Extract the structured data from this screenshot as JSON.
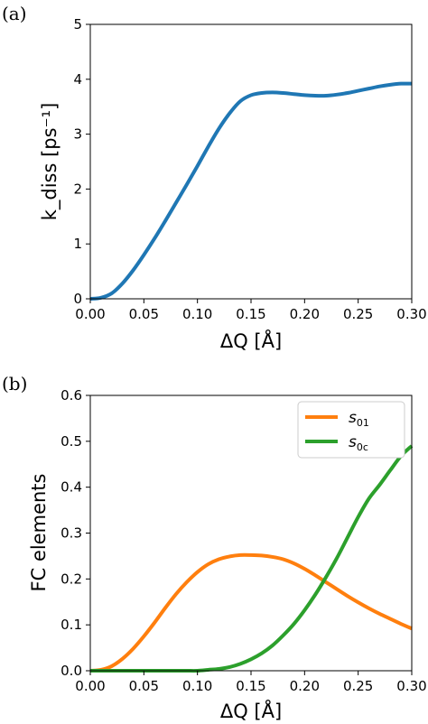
{
  "panels": [
    {
      "panel_label": "(a)",
      "xlabel": "ΔQ [Å]",
      "ylabel": "k_diss [ps⁻¹]",
      "xlim": [
        0.0,
        0.3
      ],
      "ylim": [
        0,
        5
      ],
      "xticks": [
        "0.00",
        "0.05",
        "0.10",
        "0.15",
        "0.20",
        "0.25",
        "0.30"
      ],
      "yticks": [
        "0",
        "1",
        "2",
        "3",
        "4",
        "5"
      ]
    },
    {
      "panel_label": "(b)",
      "xlabel": "ΔQ [Å]",
      "ylabel": "FC elements",
      "xlim": [
        0.0,
        0.3
      ],
      "ylim": [
        0.0,
        0.6
      ],
      "xticks": [
        "0.00",
        "0.05",
        "0.10",
        "0.15",
        "0.20",
        "0.25",
        "0.30"
      ],
      "yticks": [
        "0.0",
        "0.1",
        "0.2",
        "0.3",
        "0.4",
        "0.5",
        "0.6"
      ],
      "legend_position": "top-right"
    }
  ],
  "chart_data": [
    {
      "type": "line",
      "panel": "(a)",
      "xlabel": "ΔQ [Å]",
      "ylabel": "k_diss [ps⁻¹]",
      "xlim": [
        0.0,
        0.3
      ],
      "ylim": [
        0,
        5
      ],
      "series": [
        {
          "color": "#1f77b4",
          "x": [
            0.0,
            0.01,
            0.02,
            0.03,
            0.04,
            0.05,
            0.06,
            0.07,
            0.08,
            0.09,
            0.1,
            0.11,
            0.12,
            0.13,
            0.14,
            0.15,
            0.16,
            0.17,
            0.18,
            0.19,
            0.2,
            0.21,
            0.22,
            0.23,
            0.24,
            0.25,
            0.26,
            0.27,
            0.28,
            0.29,
            0.3
          ],
          "y": [
            0.0,
            0.02,
            0.1,
            0.28,
            0.52,
            0.8,
            1.1,
            1.42,
            1.75,
            2.08,
            2.42,
            2.77,
            3.1,
            3.38,
            3.6,
            3.71,
            3.75,
            3.76,
            3.75,
            3.73,
            3.71,
            3.7,
            3.7,
            3.72,
            3.75,
            3.79,
            3.83,
            3.87,
            3.9,
            3.92,
            3.92
          ]
        }
      ]
    },
    {
      "type": "line",
      "panel": "(b)",
      "xlabel": "ΔQ [Å]",
      "ylabel": "FC elements",
      "xlim": [
        0.0,
        0.3
      ],
      "ylim": [
        0.0,
        0.6
      ],
      "legend": "top-right",
      "series": [
        {
          "name": "s01",
          "name_main": "s",
          "name_sub": "01",
          "color": "#ff7f0e",
          "x": [
            0.0,
            0.01,
            0.02,
            0.03,
            0.04,
            0.05,
            0.06,
            0.07,
            0.08,
            0.09,
            0.1,
            0.11,
            0.12,
            0.13,
            0.14,
            0.15,
            0.16,
            0.17,
            0.18,
            0.19,
            0.2,
            0.21,
            0.22,
            0.23,
            0.24,
            0.25,
            0.26,
            0.27,
            0.28,
            0.29,
            0.3
          ],
          "y": [
            0.0,
            0.002,
            0.01,
            0.026,
            0.048,
            0.075,
            0.105,
            0.137,
            0.167,
            0.193,
            0.215,
            0.232,
            0.243,
            0.249,
            0.252,
            0.252,
            0.251,
            0.248,
            0.243,
            0.234,
            0.222,
            0.208,
            0.193,
            0.178,
            0.163,
            0.149,
            0.136,
            0.124,
            0.113,
            0.102,
            0.092
          ]
        },
        {
          "name": "s0c",
          "name_main": "s",
          "name_sub": "0c",
          "color": "#2ca02c",
          "x": [
            0.0,
            0.01,
            0.02,
            0.03,
            0.04,
            0.05,
            0.06,
            0.07,
            0.08,
            0.09,
            0.1,
            0.11,
            0.12,
            0.13,
            0.14,
            0.15,
            0.16,
            0.17,
            0.18,
            0.19,
            0.2,
            0.21,
            0.22,
            0.23,
            0.24,
            0.25,
            0.26,
            0.27,
            0.28,
            0.29,
            0.3
          ],
          "y": [
            0.0,
            0.0,
            0.0,
            0.0,
            0.0,
            0.0,
            0.0,
            0.0,
            0.0,
            0.0,
            0.0,
            0.002,
            0.004,
            0.008,
            0.015,
            0.025,
            0.038,
            0.055,
            0.077,
            0.102,
            0.132,
            0.166,
            0.204,
            0.245,
            0.29,
            0.335,
            0.375,
            0.405,
            0.437,
            0.468,
            0.49
          ]
        }
      ]
    }
  ]
}
